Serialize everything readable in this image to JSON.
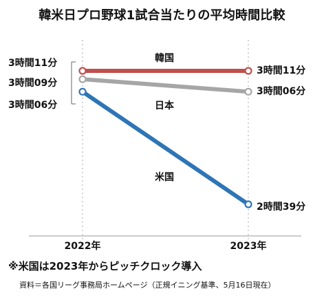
{
  "chart_data": {
    "type": "line",
    "title": "韓米日プロ野球1試合当たりの平均時間比較",
    "categories": [
      "2022年",
      "2023年"
    ],
    "series": [
      {
        "name": "韓国",
        "values_min": [
          191,
          191
        ],
        "labels": [
          "3時間11分",
          "3時間11分"
        ],
        "color": "#c0504d"
      },
      {
        "name": "日本",
        "values_min": [
          189,
          186
        ],
        "labels": [
          "3時間09分",
          "3時間06分"
        ],
        "color": "#a6a6a6"
      },
      {
        "name": "米国",
        "values_min": [
          186,
          159
        ],
        "labels": [
          "3時間06分",
          "2時間39分"
        ],
        "color": "#2e75b6"
      }
    ],
    "ylim": [
      150,
      195
    ],
    "grid": false
  },
  "note": "※米国は2023年からピッチクロック導入",
  "source": "資料＝各国リーグ事務局ホームページ（正規イニング基準、5月16日現在）"
}
